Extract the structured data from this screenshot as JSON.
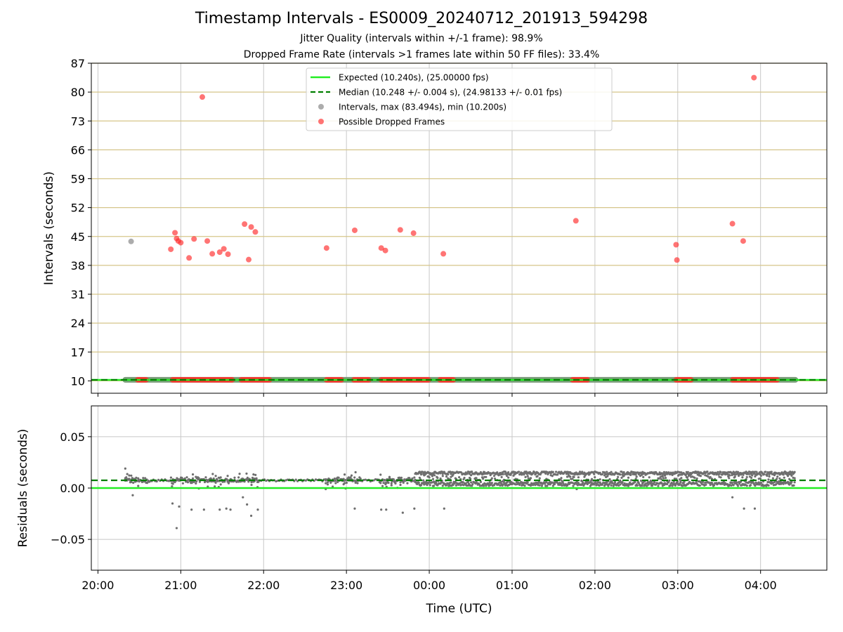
{
  "figure": {
    "title": "Timestamp Intervals - ES0009_20240712_201913_594298",
    "subtitle1": "Jitter Quality (intervals within +/-1 frame): 98.9%",
    "subtitle2": "Dropped Frame Rate (intervals >1 frames late within 50 FF files): 33.4%"
  },
  "chart_data": [
    {
      "type": "scatter",
      "ylabel": "Intervals (seconds)",
      "ylim": [
        7,
        87
      ],
      "yticks": [
        "87",
        "80",
        "73",
        "66",
        "59",
        "52",
        "45",
        "38",
        "31",
        "24",
        "17",
        "10"
      ],
      "grid": true,
      "legend_position": "top-center",
      "colors": {
        "expected": "#22ee22",
        "median": "#007f00",
        "intervals": "#808080",
        "dropped": "#ff2a2a",
        "hgrid": "#d6c68a",
        "vgrid": "#c8c8c8"
      },
      "expected_value": 10.24,
      "median_value": 10.248,
      "legend": [
        {
          "label": "Expected (10.240s), (25.00000 fps)",
          "kind": "line-solid"
        },
        {
          "label": "Median (10.248 +/- 0.004 s), (24.98133 +/- 0.01 fps)",
          "kind": "line-dashed"
        },
        {
          "label": "Intervals, max (83.494s), min (10.200s)",
          "kind": "dot-gray"
        },
        {
          "label": "Possible Dropped Frames",
          "kind": "dot-red"
        }
      ],
      "baseline_band_hours": [
        20.33,
        28.42
      ],
      "gray_outliers": [
        {
          "x": 20.4,
          "y": 43.8
        }
      ],
      "dropped_frames": [
        {
          "x": 20.88,
          "y": 41.9
        },
        {
          "x": 20.93,
          "y": 45.9
        },
        {
          "x": 20.95,
          "y": 44.5
        },
        {
          "x": 20.97,
          "y": 43.9
        },
        {
          "x": 21.0,
          "y": 43.5
        },
        {
          "x": 21.1,
          "y": 39.8
        },
        {
          "x": 21.16,
          "y": 44.4
        },
        {
          "x": 21.26,
          "y": 78.8
        },
        {
          "x": 21.32,
          "y": 43.9
        },
        {
          "x": 21.38,
          "y": 40.8
        },
        {
          "x": 21.47,
          "y": 41.2
        },
        {
          "x": 21.52,
          "y": 42.0
        },
        {
          "x": 21.57,
          "y": 40.7
        },
        {
          "x": 21.77,
          "y": 48.0
        },
        {
          "x": 21.82,
          "y": 39.4
        },
        {
          "x": 21.85,
          "y": 47.3
        },
        {
          "x": 21.9,
          "y": 46.1
        },
        {
          "x": 22.76,
          "y": 42.2
        },
        {
          "x": 23.1,
          "y": 46.5
        },
        {
          "x": 23.42,
          "y": 42.2
        },
        {
          "x": 23.47,
          "y": 41.6
        },
        {
          "x": 23.65,
          "y": 46.6
        },
        {
          "x": 23.81,
          "y": 45.8
        },
        {
          "x": 24.17,
          "y": 40.8
        },
        {
          "x": 25.77,
          "y": 48.8
        },
        {
          "x": 26.98,
          "y": 43.0
        },
        {
          "x": 26.99,
          "y": 39.3
        },
        {
          "x": 27.66,
          "y": 48.1
        },
        {
          "x": 27.79,
          "y": 43.9
        },
        {
          "x": 27.92,
          "y": 83.5
        }
      ],
      "dropped_clusters": [
        [
          20.48,
          20.58
        ],
        [
          20.9,
          21.62
        ],
        [
          21.73,
          22.08
        ],
        [
          22.76,
          22.95
        ],
        [
          23.09,
          23.27
        ],
        [
          23.42,
          23.62
        ],
        [
          23.65,
          24.0
        ],
        [
          24.13,
          24.3
        ],
        [
          25.73,
          25.92
        ],
        [
          26.98,
          27.17
        ],
        [
          27.66,
          28.2
        ]
      ]
    },
    {
      "type": "scatter",
      "xlabel": "Time (UTC)",
      "ylabel": "Residuals (seconds)",
      "ylim": [
        -0.08,
        0.08
      ],
      "yticks": [
        "0.05",
        "0.00",
        "−0.05"
      ],
      "ytick_values": [
        0.05,
        0.0,
        -0.05
      ],
      "xlim": [
        19.92,
        28.8
      ],
      "xticks": [
        "20:00",
        "21:00",
        "22:00",
        "23:00",
        "00:00",
        "01:00",
        "02:00",
        "03:00",
        "04:00"
      ],
      "xtick_hours": [
        20,
        21,
        22,
        23,
        24,
        25,
        26,
        27,
        28
      ],
      "expected_value": 0.0,
      "median_value": 0.0075,
      "dense_range_hours": [
        23.83,
        28.42
      ],
      "clusters_hours": [
        [
          20.33,
          20.62
        ],
        [
          20.87,
          21.95
        ],
        [
          22.75,
          23.18
        ],
        [
          23.4,
          23.83
        ]
      ],
      "outliers": [
        {
          "x": 20.33,
          "y": 0.019
        },
        {
          "x": 20.42,
          "y": -0.007
        },
        {
          "x": 20.9,
          "y": -0.015
        },
        {
          "x": 20.95,
          "y": -0.039
        },
        {
          "x": 20.98,
          "y": -0.018
        },
        {
          "x": 21.13,
          "y": -0.021
        },
        {
          "x": 21.28,
          "y": -0.021
        },
        {
          "x": 21.47,
          "y": -0.021
        },
        {
          "x": 21.55,
          "y": -0.02
        },
        {
          "x": 21.6,
          "y": -0.021
        },
        {
          "x": 21.75,
          "y": -0.009
        },
        {
          "x": 21.8,
          "y": -0.016
        },
        {
          "x": 21.85,
          "y": -0.027
        },
        {
          "x": 21.93,
          "y": -0.021
        },
        {
          "x": 22.75,
          "y": -0.001
        },
        {
          "x": 23.1,
          "y": -0.02
        },
        {
          "x": 23.42,
          "y": -0.021
        },
        {
          "x": 23.48,
          "y": -0.021
        },
        {
          "x": 23.68,
          "y": -0.024
        },
        {
          "x": 23.82,
          "y": -0.02
        },
        {
          "x": 24.18,
          "y": -0.02
        },
        {
          "x": 25.78,
          "y": -0.001
        },
        {
          "x": 27.66,
          "y": -0.009
        },
        {
          "x": 27.8,
          "y": -0.02
        },
        {
          "x": 27.93,
          "y": -0.02
        }
      ]
    }
  ]
}
